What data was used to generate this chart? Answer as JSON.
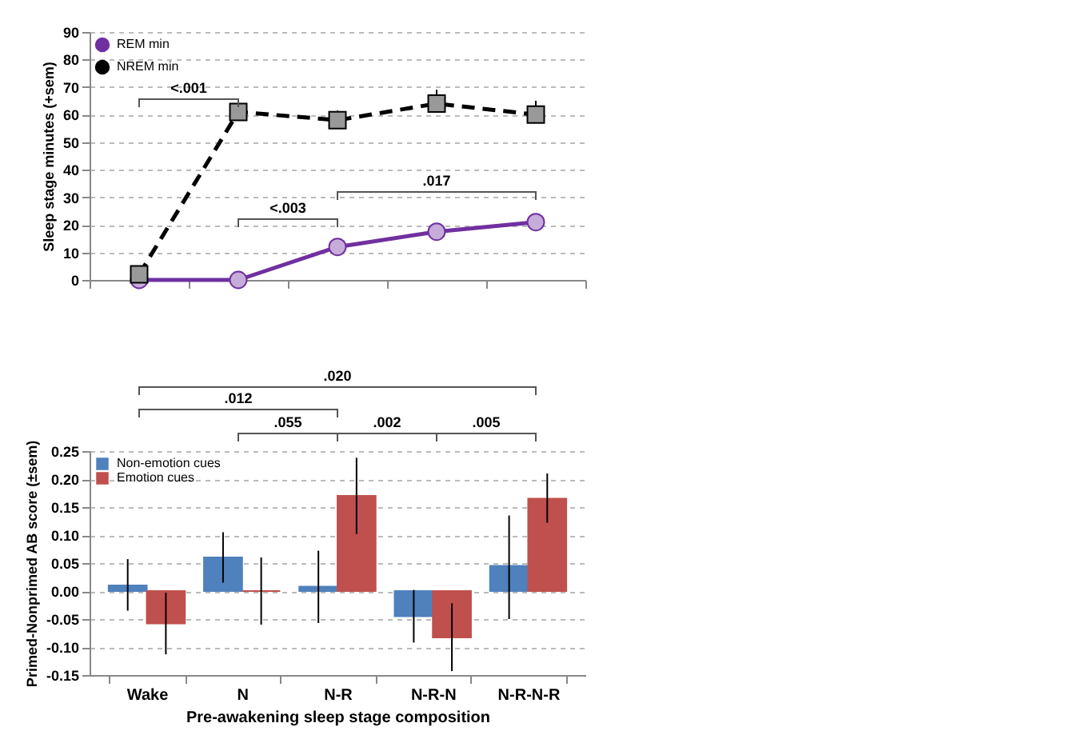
{
  "chart_data": [
    {
      "type": "line",
      "ylabel": "Sleep stage minutes (+sem)",
      "categories": [
        null,
        null,
        null,
        null,
        null
      ],
      "tick_labels": "y",
      "ylim": [
        0,
        90
      ],
      "yticks": [
        0,
        10,
        20,
        30,
        40,
        50,
        60,
        70,
        80,
        90
      ],
      "grid": "y",
      "legend": "top left",
      "series": [
        {
          "name": "REM min",
          "color": "#7030a0",
          "marker": "circle",
          "line_style": "solid",
          "values": [
            0,
            0,
            12,
            17.5,
            21
          ],
          "errors": [
            null,
            null,
            null,
            [
              17.5,
              20
            ],
            null
          ]
        },
        {
          "name": "NREM min",
          "color": "#000000",
          "marker": "square",
          "line_style": "dashed",
          "values": [
            2,
            61,
            58,
            64,
            60
          ],
          "errors": [
            [
              2,
              4
            ],
            [
              61,
              65
            ],
            [
              58,
              61.5
            ],
            [
              64,
              69
            ],
            [
              60,
              65
            ]
          ]
        }
      ],
      "annotations": [
        "<.001",
        "<.003",
        ".017"
      ]
    },
    {
      "type": "bar",
      "ylabel": "Primed-Nonprimed AB score (±sem)",
      "xlabel": "Pre-awakening sleep stage composition",
      "categories": [
        "Wake",
        "N",
        "N-R",
        "N-R-N",
        "N-R-N-R"
      ],
      "ylim": [
        -0.15,
        0.25
      ],
      "yticks": [
        {
          "value": -0.15,
          "label": "-0.15"
        },
        {
          "value": -0.1,
          "label": "-0.10"
        },
        {
          "value": -0.05,
          "label": "-0.05"
        },
        {
          "value": 0,
          "label": "0.00"
        },
        {
          "value": 0.05,
          "label": "0.05"
        },
        {
          "value": 0.1,
          "label": "0.10"
        },
        {
          "value": 0.15,
          "label": "0.15"
        },
        {
          "value": 0.2,
          "label": "0.20"
        },
        {
          "value": 0.25,
          "label": "0.25"
        }
      ],
      "grid": "y",
      "legend": "top left",
      "series": [
        {
          "name": "Non-emotion cues",
          "color": "#4f81bd",
          "values": [
            0.01,
            0.06,
            0.008,
            -0.045,
            0.045
          ],
          "errors": [
            [
              -0.035,
              0.057
            ],
            [
              0.015,
              0.105
            ],
            [
              -0.057,
              0.072
            ],
            [
              -0.092,
              0.002
            ],
            [
              -0.05,
              0.135
            ]
          ]
        },
        {
          "name": "Emotion cues",
          "color": "#c0504d",
          "values": [
            -0.058,
            0,
            0.17,
            -0.083,
            0.165
          ],
          "errors": [
            [
              -0.113,
              -0.003
            ],
            [
              -0.06,
              0.06
            ],
            [
              0.102,
              0.238
            ],
            [
              -0.143,
              -0.022
            ],
            [
              0.122,
              0.21
            ]
          ]
        }
      ],
      "annotations": [
        ".020",
        ".012",
        ".055",
        ".002",
        ".005"
      ]
    }
  ]
}
